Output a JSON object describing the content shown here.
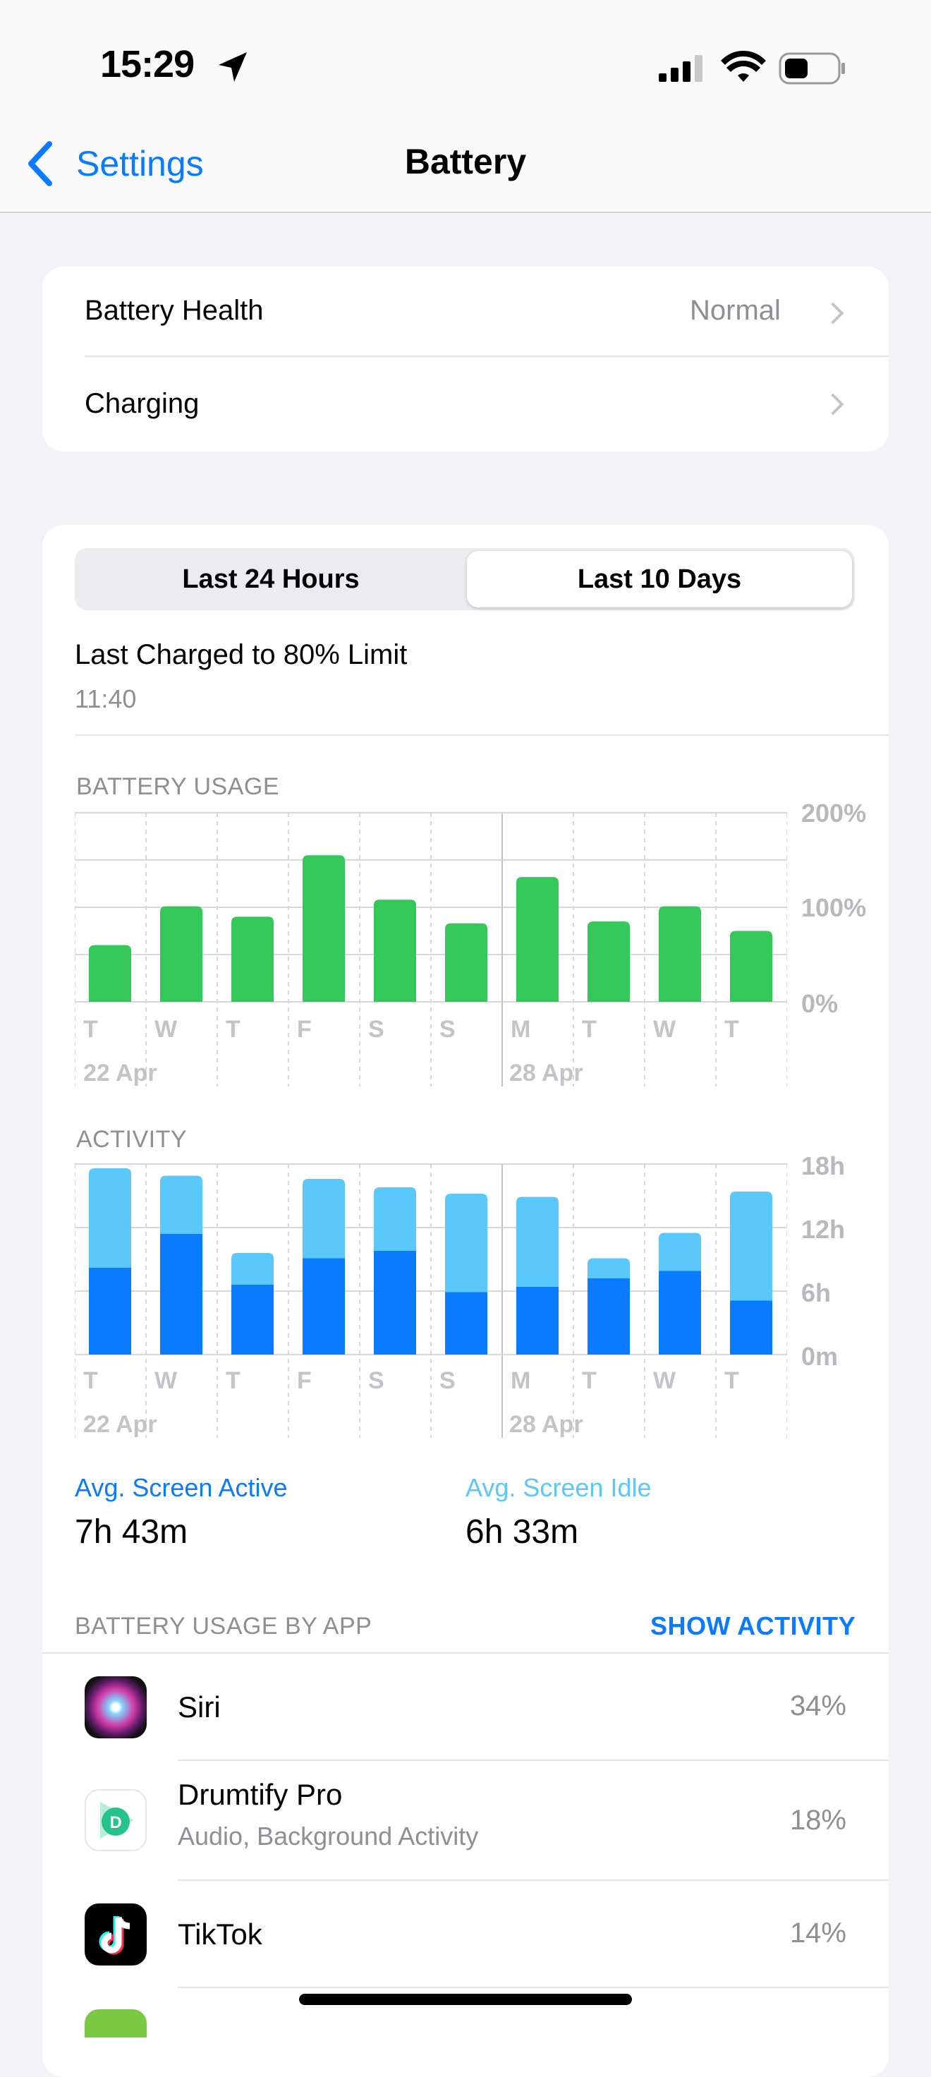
{
  "status_bar": {
    "time": "15:29"
  },
  "nav": {
    "back_label": "Settings",
    "title": "Battery"
  },
  "health": {
    "battery_health_label": "Battery Health",
    "battery_health_value": "Normal",
    "charging_label": "Charging"
  },
  "segment": {
    "options": [
      "Last 24 Hours",
      "Last 10 Days"
    ],
    "selected": "Last 10 Days"
  },
  "last_charged": {
    "title": "Last Charged to 80% Limit",
    "time": "11:40"
  },
  "battery_usage": {
    "section_label": "BATTERY USAGE",
    "y_ticks": [
      "200%",
      "100%",
      "0%"
    ],
    "day_labels": [
      "T",
      "W",
      "T",
      "F",
      "S",
      "S",
      "M",
      "T",
      "W",
      "T"
    ],
    "date_labels": [
      "22 Apr",
      "28 Apr"
    ]
  },
  "activity": {
    "section_label": "ACTIVITY",
    "y_ticks": [
      "18h",
      "12h",
      "6h",
      "0m"
    ],
    "day_labels": [
      "T",
      "W",
      "T",
      "F",
      "S",
      "S",
      "M",
      "T",
      "W",
      "T"
    ],
    "date_labels": [
      "22 Apr",
      "28 Apr"
    ]
  },
  "stats": {
    "active_label": "Avg. Screen Active",
    "active_value": "7h 43m",
    "idle_label": "Avg. Screen Idle",
    "idle_value": "6h 33m"
  },
  "by_app": {
    "section_label": "BATTERY USAGE BY APP",
    "action_label": "SHOW ACTIVITY",
    "apps": [
      {
        "name": "Siri",
        "subtitle": "",
        "percent": "34%",
        "icon": "siri-icon"
      },
      {
        "name": "Drumtify Pro",
        "subtitle": "Audio, Background Activity",
        "percent": "18%",
        "icon": "drumtify-icon"
      },
      {
        "name": "TikTok",
        "subtitle": "",
        "percent": "14%",
        "icon": "tiktok-icon"
      }
    ]
  },
  "colors": {
    "accent": "#0a7aff",
    "battery_bar": "#34c759",
    "active_bar": "#0a7aff",
    "idle_bar": "#5ac8fa"
  },
  "chart_data": [
    {
      "type": "bar",
      "title": "BATTERY USAGE",
      "categories": [
        "T",
        "W",
        "T",
        "F",
        "S",
        "S",
        "M",
        "T",
        "W",
        "T"
      ],
      "values": [
        60,
        101,
        90,
        155,
        108,
        83,
        132,
        85,
        101,
        75
      ],
      "ylim": [
        0,
        200
      ],
      "unit": "%"
    },
    {
      "type": "bar",
      "title": "ACTIVITY",
      "stacked": true,
      "categories": [
        "T",
        "W",
        "T",
        "F",
        "S",
        "S",
        "M",
        "T",
        "W",
        "T"
      ],
      "series": [
        {
          "name": "Avg. Screen Active",
          "values": [
            8.2,
            11.4,
            6.6,
            9.1,
            9.8,
            5.9,
            6.4,
            7.2,
            7.9,
            5.1
          ]
        },
        {
          "name": "Avg. Screen Idle",
          "values": [
            9.4,
            5.5,
            3.0,
            7.5,
            6.0,
            9.3,
            8.5,
            1.9,
            3.6,
            10.3
          ]
        }
      ],
      "ylim": [
        0,
        18
      ],
      "unit": "h"
    }
  ]
}
